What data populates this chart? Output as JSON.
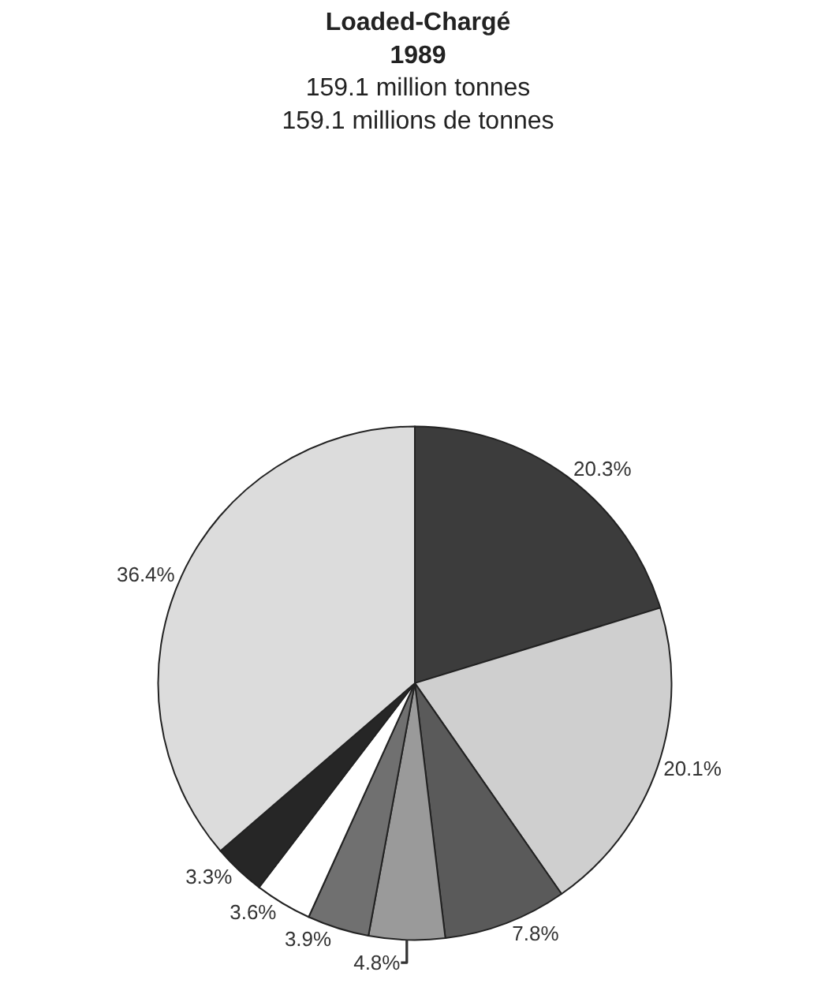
{
  "chart_data": {
    "type": "pie",
    "title": "Loaded-Chargé\n1989",
    "subtitle": "159.1 million tonnes\n159.1 millions de tonnes",
    "categories": [
      null,
      null,
      null,
      null,
      null,
      null,
      null,
      null
    ],
    "values": [
      20.3,
      20.1,
      7.8,
      4.8,
      3.9,
      3.6,
      3.3,
      36.4
    ],
    "value_labels": [
      "20.3%",
      "20.1%",
      "7.8%",
      "4.8%",
      "3.9%",
      "3.6%",
      "3.3%",
      "36.4%"
    ],
    "colors": [
      "#3c3c3c",
      "#cfcfcf",
      "#5a5a5a",
      "#9a9a9a",
      "#707070",
      "#ffffff",
      "#262626",
      "#dcdcdc"
    ],
    "legend": false
  }
}
